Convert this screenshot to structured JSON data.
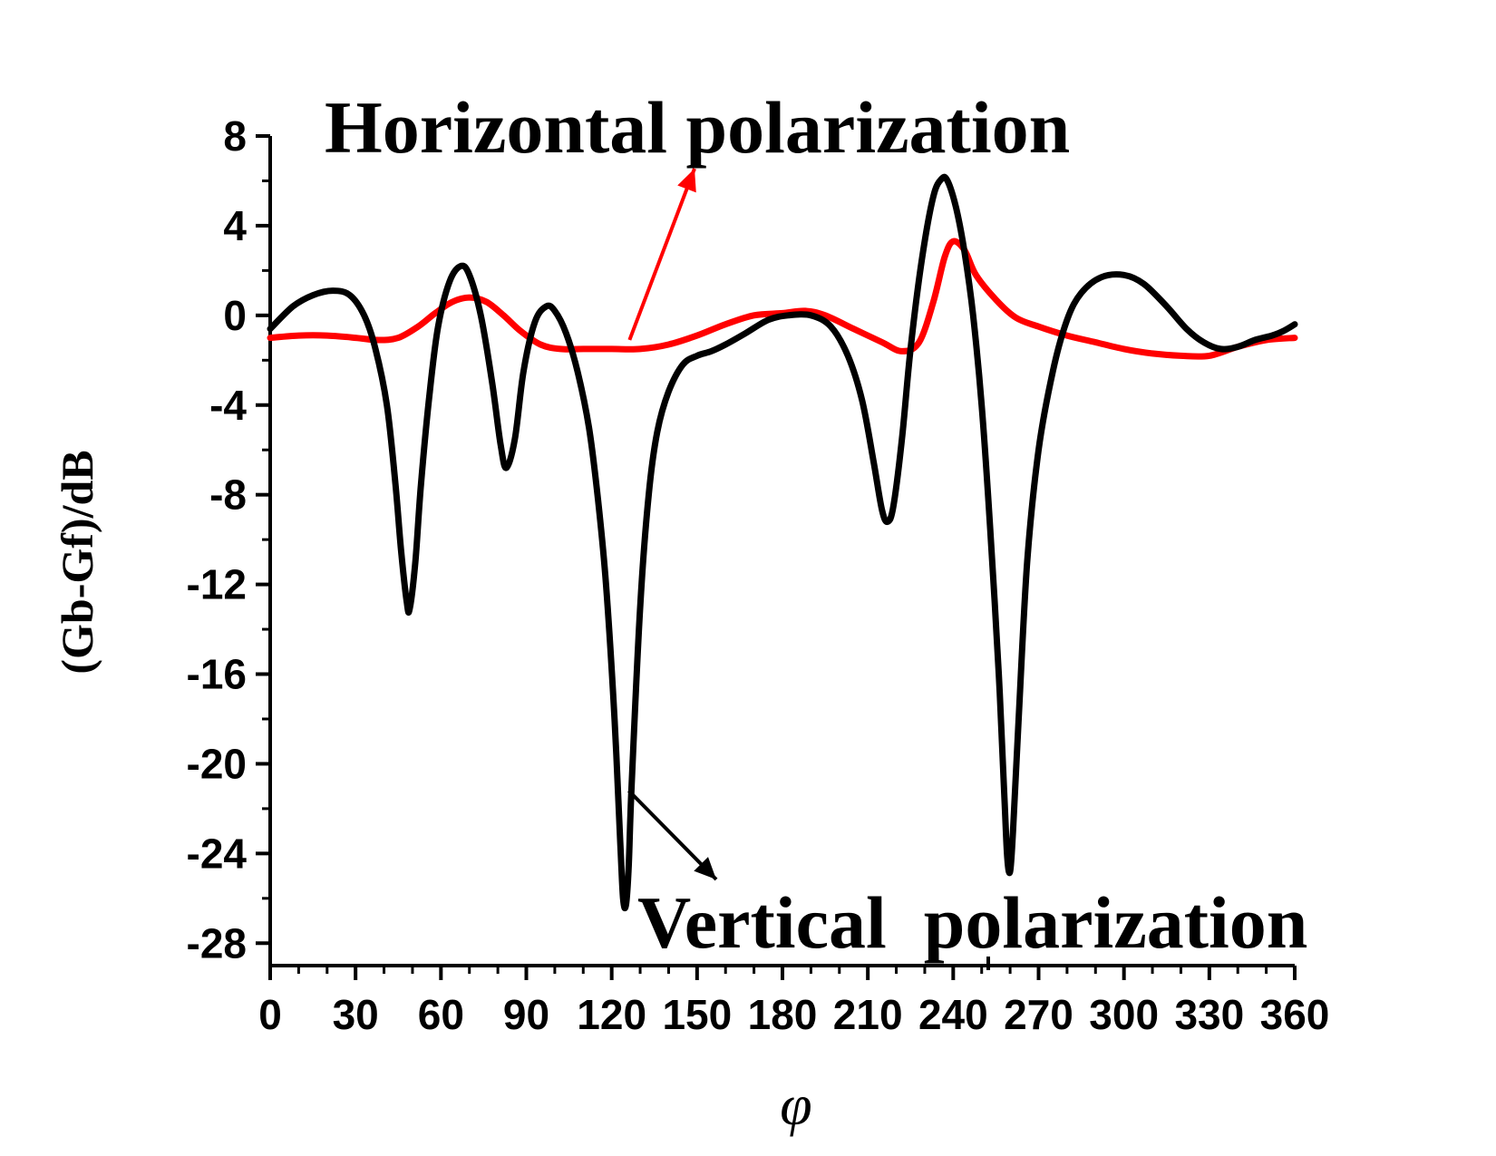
{
  "chart_data": {
    "type": "line",
    "xlabel": "φ",
    "ylabel": "(Gb-Gf)/dB",
    "xlim": [
      0,
      360
    ],
    "ylim": [
      -29,
      8
    ],
    "x_ticks": [
      0,
      30,
      60,
      90,
      120,
      150,
      180,
      210,
      240,
      270,
      300,
      330,
      360
    ],
    "y_ticks": [
      8,
      4,
      0,
      -4,
      -8,
      -12,
      -16,
      -20,
      -24,
      -28
    ],
    "grid": false,
    "legend": "none",
    "series": [
      {
        "color": "#ff0000",
        "points": [
          [
            0,
            -1.0
          ],
          [
            10,
            -0.9
          ],
          [
            20,
            -0.9
          ],
          [
            30,
            -1.0
          ],
          [
            38,
            -1.1
          ],
          [
            45,
            -1.0
          ],
          [
            52,
            -0.5
          ],
          [
            58,
            0.1
          ],
          [
            64,
            0.6
          ],
          [
            70,
            0.8
          ],
          [
            76,
            0.6
          ],
          [
            82,
            0.0
          ],
          [
            88,
            -0.7
          ],
          [
            95,
            -1.3
          ],
          [
            102,
            -1.5
          ],
          [
            110,
            -1.5
          ],
          [
            120,
            -1.5
          ],
          [
            130,
            -1.5
          ],
          [
            140,
            -1.3
          ],
          [
            150,
            -0.9
          ],
          [
            160,
            -0.4
          ],
          [
            170,
            0.0
          ],
          [
            180,
            0.1
          ],
          [
            188,
            0.2
          ],
          [
            195,
            0.0
          ],
          [
            205,
            -0.6
          ],
          [
            215,
            -1.2
          ],
          [
            222,
            -1.6
          ],
          [
            228,
            -1.2
          ],
          [
            233,
            0.6
          ],
          [
            237,
            2.6
          ],
          [
            240,
            3.3
          ],
          [
            244,
            2.9
          ],
          [
            248,
            1.8
          ],
          [
            255,
            0.7
          ],
          [
            262,
            -0.1
          ],
          [
            270,
            -0.5
          ],
          [
            280,
            -0.9
          ],
          [
            290,
            -1.2
          ],
          [
            300,
            -1.5
          ],
          [
            310,
            -1.7
          ],
          [
            320,
            -1.8
          ],
          [
            330,
            -1.8
          ],
          [
            340,
            -1.4
          ],
          [
            350,
            -1.1
          ],
          [
            360,
            -1.0
          ]
        ]
      },
      {
        "color": "#000000",
        "points": [
          [
            0,
            -0.6
          ],
          [
            8,
            0.4
          ],
          [
            15,
            0.9
          ],
          [
            22,
            1.1
          ],
          [
            28,
            0.9
          ],
          [
            33,
            0.0
          ],
          [
            37,
            -1.5
          ],
          [
            41,
            -4.0
          ],
          [
            44,
            -7.5
          ],
          [
            46,
            -10.5
          ],
          [
            48,
            -12.8
          ],
          [
            49,
            -13.1
          ],
          [
            51,
            -11.0
          ],
          [
            53,
            -7.5
          ],
          [
            56,
            -3.5
          ],
          [
            59,
            -0.5
          ],
          [
            63,
            1.5
          ],
          [
            67,
            2.2
          ],
          [
            70,
            1.8
          ],
          [
            74,
            0.0
          ],
          [
            78,
            -3.0
          ],
          [
            81,
            -5.8
          ],
          [
            83,
            -6.8
          ],
          [
            86,
            -5.5
          ],
          [
            89,
            -2.5
          ],
          [
            93,
            -0.3
          ],
          [
            97,
            0.4
          ],
          [
            100,
            0.2
          ],
          [
            104,
            -0.8
          ],
          [
            108,
            -2.5
          ],
          [
            112,
            -5.0
          ],
          [
            115,
            -8.0
          ],
          [
            118,
            -12.0
          ],
          [
            121,
            -18.0
          ],
          [
            123,
            -23.5
          ],
          [
            124,
            -26.0
          ],
          [
            125,
            -26.3
          ],
          [
            126,
            -24.5
          ],
          [
            127,
            -21.0
          ],
          [
            130,
            -13.0
          ],
          [
            133,
            -8.0
          ],
          [
            136,
            -5.2
          ],
          [
            140,
            -3.4
          ],
          [
            145,
            -2.2
          ],
          [
            150,
            -1.8
          ],
          [
            155,
            -1.6
          ],
          [
            160,
            -1.3
          ],
          [
            167,
            -0.8
          ],
          [
            175,
            -0.2
          ],
          [
            182,
            0.0
          ],
          [
            190,
            0.0
          ],
          [
            197,
            -0.5
          ],
          [
            203,
            -1.8
          ],
          [
            208,
            -3.8
          ],
          [
            212,
            -6.5
          ],
          [
            215,
            -8.7
          ],
          [
            217,
            -9.2
          ],
          [
            219,
            -8.5
          ],
          [
            222,
            -5.5
          ],
          [
            225,
            -1.5
          ],
          [
            229,
            2.5
          ],
          [
            233,
            5.3
          ],
          [
            236,
            6.1
          ],
          [
            238,
            6.0
          ],
          [
            241,
            4.8
          ],
          [
            244,
            2.8
          ],
          [
            247,
            0.0
          ],
          [
            250,
            -4.0
          ],
          [
            253,
            -9.5
          ],
          [
            256,
            -16.0
          ],
          [
            258,
            -21.5
          ],
          [
            259,
            -24.2
          ],
          [
            260,
            -24.8
          ],
          [
            261,
            -23.0
          ],
          [
            263,
            -18.0
          ],
          [
            266,
            -11.0
          ],
          [
            270,
            -6.0
          ],
          [
            275,
            -2.5
          ],
          [
            280,
            -0.2
          ],
          [
            285,
            1.0
          ],
          [
            292,
            1.7
          ],
          [
            300,
            1.8
          ],
          [
            307,
            1.4
          ],
          [
            315,
            0.4
          ],
          [
            322,
            -0.6
          ],
          [
            328,
            -1.2
          ],
          [
            334,
            -1.5
          ],
          [
            340,
            -1.4
          ],
          [
            346,
            -1.1
          ],
          [
            352,
            -0.9
          ],
          [
            356,
            -0.7
          ],
          [
            360,
            -0.4
          ]
        ]
      }
    ],
    "annotations": [
      {
        "text": "Horizontal polarization",
        "target": [
          125,
          -1.5
        ]
      },
      {
        "text": "Vertical  polarization",
        "target": [
          126,
          -21.2
        ]
      }
    ]
  }
}
